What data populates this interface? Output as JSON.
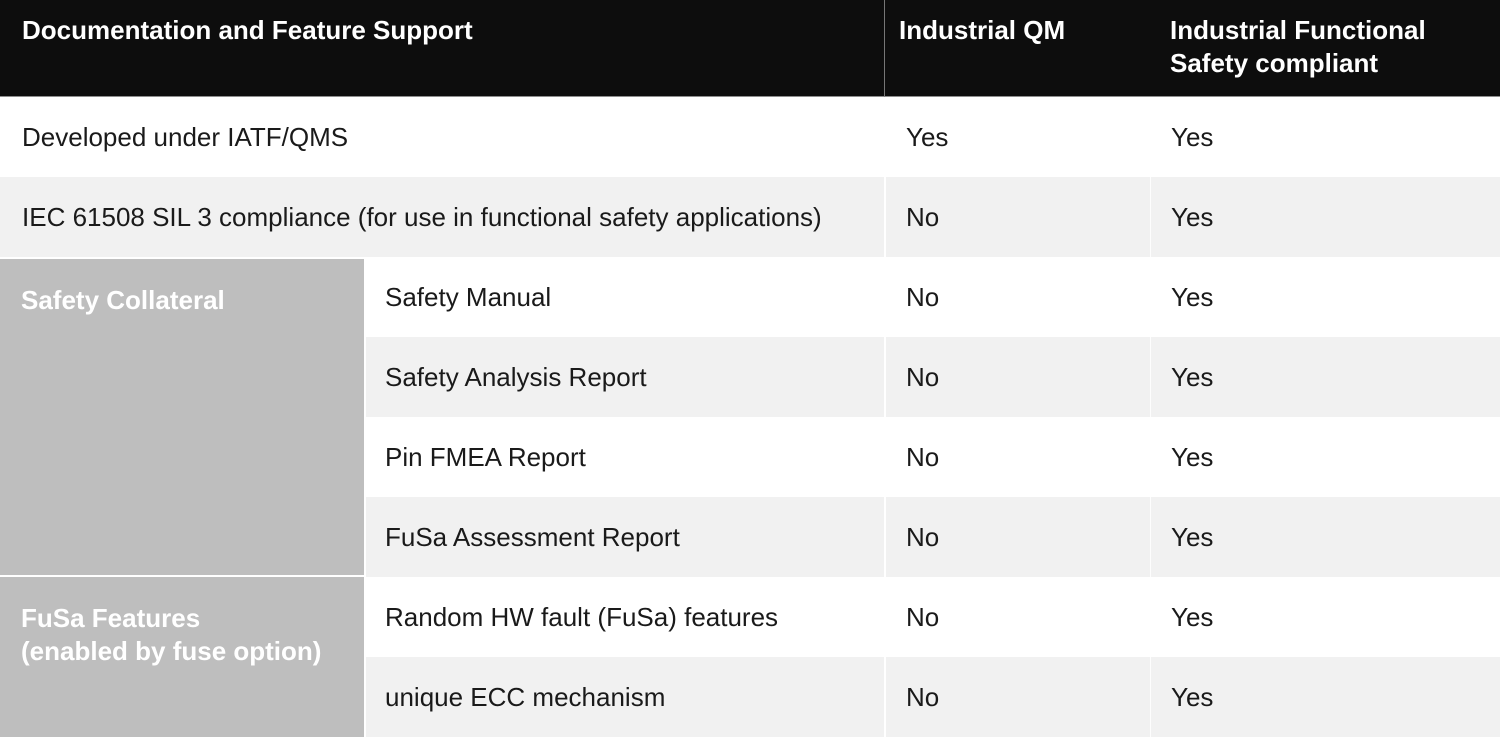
{
  "header": {
    "feature_col": "Documentation and Feature Support",
    "qm_col": "Industrial QM",
    "fusa_col": "Industrial Functional Safety compliant"
  },
  "groups": [
    {
      "line1": "Safety Collateral",
      "line2": ""
    },
    {
      "line1": "FuSa Features",
      "line2": "(enabled by fuse option)"
    }
  ],
  "rows": [
    {
      "label": "Developed under IATF/QMS",
      "qm": "Yes",
      "fusa": "Yes"
    },
    {
      "label": "IEC 61508 SIL 3 compliance (for use in functional safety applications)",
      "qm": "No",
      "fusa": "Yes"
    },
    {
      "label": "Safety Manual",
      "qm": "No",
      "fusa": "Yes"
    },
    {
      "label": "Safety Analysis Report",
      "qm": "No",
      "fusa": "Yes"
    },
    {
      "label": "Pin FMEA Report",
      "qm": "No",
      "fusa": "Yes"
    },
    {
      "label": "FuSa Assessment Report",
      "qm": "No",
      "fusa": "Yes"
    },
    {
      "label": "Random HW fault (FuSa) features",
      "qm": "No",
      "fusa": "Yes"
    },
    {
      "label": "unique ECC mechanism",
      "qm": "No",
      "fusa": "Yes"
    }
  ],
  "colors": {
    "header_bg": "#0d0d0d",
    "header_text": "#ffffff",
    "row_alt_bg": "#f1f1f1",
    "group_bg": "#bebebe",
    "text": "#1a1a1a",
    "header_divider": "#767676",
    "header_underline": "#8d8d8d"
  }
}
